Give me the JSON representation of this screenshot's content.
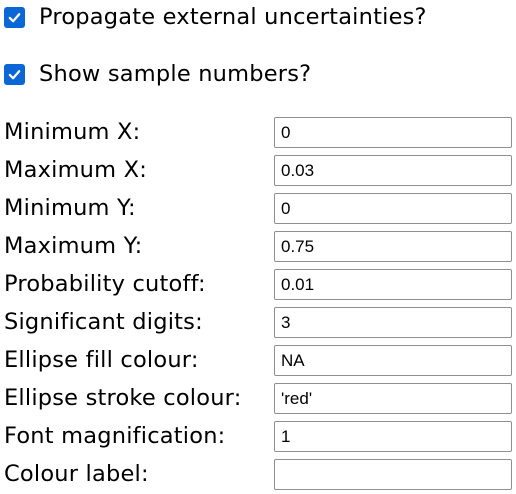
{
  "options": {
    "propagate_external_uncertainties": {
      "label": "Propagate external uncertainties?",
      "checked": true
    },
    "show_sample_numbers": {
      "label": "Show sample numbers?",
      "checked": true
    }
  },
  "fields": {
    "minimum_x": {
      "label": "Minimum X:",
      "value": "0"
    },
    "maximum_x": {
      "label": "Maximum X:",
      "value": "0.03"
    },
    "minimum_y": {
      "label": "Minimum Y:",
      "value": "0"
    },
    "maximum_y": {
      "label": "Maximum Y:",
      "value": "0.75"
    },
    "probability_cutoff": {
      "label": "Probability cutoff:",
      "value": "0.01"
    },
    "significant_digits": {
      "label": "Significant digits:",
      "value": "3"
    },
    "ellipse_fill_colour": {
      "label": "Ellipse fill colour:",
      "value": "NA"
    },
    "ellipse_stroke_colour": {
      "label": "Ellipse stroke colour:",
      "value": "'red'"
    },
    "font_magnification": {
      "label": "Font magnification:",
      "value": "1"
    },
    "colour_label": {
      "label": "Colour label:",
      "value": ""
    }
  },
  "colors": {
    "checkbox_accent": "#0b66d6",
    "input_border": "#8f8f8f"
  },
  "icons": {
    "checkbox_mark": "checkmark-icon"
  }
}
